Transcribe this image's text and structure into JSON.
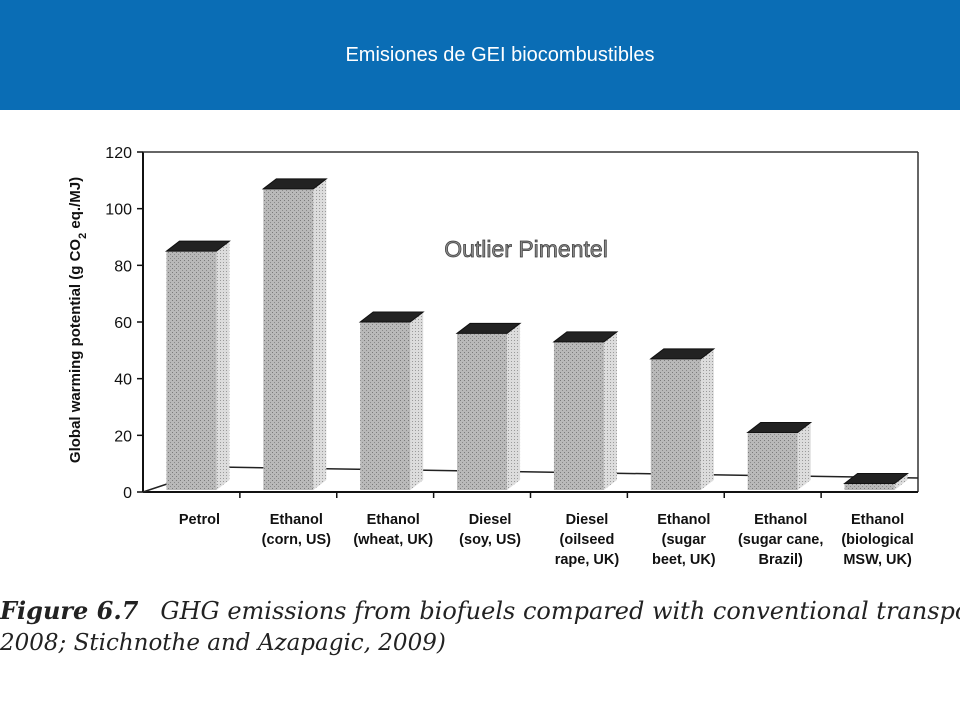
{
  "slide": {
    "title": "Emisiones de GEI biocombustibles"
  },
  "figure": {
    "label": "Figure 6.7",
    "caption_line1": "GHG emissions from biofuels compared with conventional transport fuels (",
    "caption_line2": "2008; Stichnothe and Azapagic, 2009)"
  },
  "annotation": {
    "text": "Outlier Pimentel"
  },
  "chart_data": {
    "type": "bar",
    "ylabel": "Global warming potential (g CO2 eq./MJ)",
    "ylim": [
      0,
      120
    ],
    "yticks": [
      0,
      20,
      40,
      60,
      80,
      100,
      120
    ],
    "grid": false,
    "categories": [
      [
        "Petrol"
      ],
      [
        "Ethanol",
        "(corn, US)"
      ],
      [
        "Ethanol",
        "(wheat, UK)"
      ],
      [
        "Diesel",
        "(soy, US)"
      ],
      [
        "Diesel",
        "(oilseed",
        "rape, UK)"
      ],
      [
        "Ethanol",
        "(sugar",
        "beet, UK)"
      ],
      [
        "Ethanol",
        "(sugar cane,",
        "Brazil)"
      ],
      [
        "Ethanol",
        "(biological",
        "MSW, UK)"
      ]
    ],
    "values": [
      85,
      107,
      60,
      56,
      53,
      47,
      21,
      3
    ],
    "bar_color": "#b9b9b9",
    "top_color": "#222222"
  }
}
